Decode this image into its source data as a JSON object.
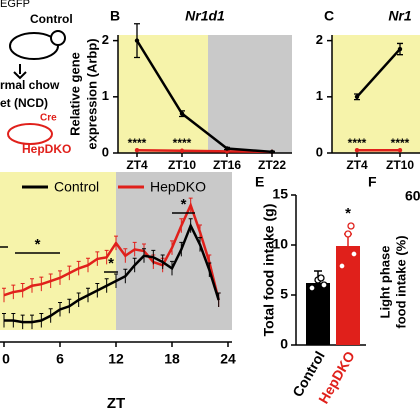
{
  "diagram": {
    "top_label": "EGFP",
    "control_label": "Control",
    "diet_lines": [
      "rmal chow",
      "et (NCD)"
    ],
    "cre_label": "Cre",
    "ko_label": "HepDKO"
  },
  "chart_data": [
    {
      "type": "line",
      "panel": "B",
      "title": "Nr1d1",
      "y_label": [
        "Relative gene",
        "expression (Arbp)"
      ],
      "categories": [
        "ZT4",
        "ZT10",
        "ZT16",
        "ZT22"
      ],
      "series": [
        {
          "name": "Control",
          "color": "#000000",
          "values": [
            2.0,
            0.7,
            0.08,
            0.02
          ],
          "errors": [
            0.3,
            0.05,
            0.02,
            0.01
          ]
        },
        {
          "name": "HepDKO",
          "color": "#e0201b",
          "values": [
            0.05,
            0.04,
            0.03,
            0.02
          ]
        }
      ],
      "annotations": [
        "****",
        "****"
      ],
      "ylim": [
        0,
        2.1
      ],
      "yticks": [
        0,
        1,
        2
      ],
      "light_color": "#f6f3aa",
      "dark_color": "#c9c9c9"
    },
    {
      "type": "line",
      "panel": "C",
      "title": "Nr1",
      "categories": [
        "ZT4",
        "ZT10"
      ],
      "series": [
        {
          "name": "Control",
          "color": "#000000",
          "values": [
            1.0,
            1.85
          ],
          "errors": [
            0.05,
            0.1
          ]
        },
        {
          "name": "HepDKO",
          "color": "#e0201b",
          "values": [
            0.05,
            0.05
          ]
        }
      ],
      "annotations": [
        "****",
        "****"
      ],
      "ylim": [
        0,
        2.1
      ],
      "yticks": [
        0,
        1,
        2
      ],
      "light_color": "#f6f3aa"
    },
    {
      "type": "line",
      "x": [
        0,
        1,
        2,
        3,
        4,
        5,
        6,
        7,
        8,
        9,
        10,
        11,
        12,
        13,
        14,
        15,
        16,
        17,
        18,
        19,
        20,
        21,
        22,
        23
      ],
      "series": [
        {
          "name": "Control",
          "color": "#000000",
          "values": [
            0.6,
            0.6,
            0.5,
            0.5,
            0.6,
            0.9,
            1.3,
            1.5,
            1.9,
            2.2,
            2.5,
            2.8,
            3.1,
            3.4,
            4.1,
            4.7,
            4.6,
            4.3,
            3.9,
            5.1,
            6.6,
            5.4,
            3.8,
            1.9
          ]
        },
        {
          "name": "HepDKO",
          "color": "#e0201b",
          "values": [
            2.2,
            2.4,
            2.5,
            2.8,
            2.9,
            3.1,
            3.3,
            3.6,
            3.9,
            4.1,
            4.5,
            4.6,
            5.5,
            4.7,
            5.1,
            5.0,
            4.3,
            4.1,
            5.2,
            6.6,
            7.9,
            6.2,
            4.3,
            1.9
          ]
        }
      ],
      "x_label": "ZT",
      "xlim": [
        0,
        24
      ],
      "xticks": [
        0,
        6,
        12,
        18,
        24
      ],
      "ylim": [
        0,
        10
      ],
      "annotations": [
        "*",
        "*",
        "*"
      ],
      "light_color": "#f6f3aa",
      "dark_color": "#c9c9c9"
    },
    {
      "type": "bar",
      "panel": "E",
      "y_label": "Total food intake (g)",
      "categories": [
        "Control",
        "HepDKO"
      ],
      "values": [
        6.2,
        9.9
      ],
      "colors": [
        "#000000",
        "#e0201b"
      ],
      "ylim": [
        0,
        15
      ],
      "yticks": [
        0,
        5,
        10,
        15
      ],
      "annotations": [
        "*"
      ]
    },
    {
      "type": "bar",
      "panel": "F",
      "y_label": [
        "Light phase",
        "food intake (%)"
      ],
      "yticks": [
        60
      ]
    }
  ]
}
